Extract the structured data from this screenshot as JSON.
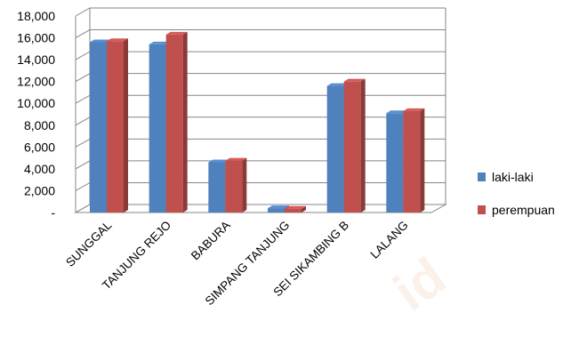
{
  "chart_data": {
    "type": "bar",
    "categories": [
      "SUNGGAL",
      "TANJUNG REJO",
      "BABURA",
      "SIMPANG TANJUNG",
      "SEI SIKAMBING B",
      "LALANG"
    ],
    "series": [
      {
        "name": "laki-laki",
        "values": [
          15600,
          15400,
          4600,
          400,
          11600,
          9100
        ]
      },
      {
        "name": "perempuan",
        "values": [
          15700,
          16300,
          4750,
          350,
          12000,
          9300
        ]
      }
    ],
    "ylim": [
      0,
      18000
    ],
    "yticks": [
      0,
      2000,
      4000,
      6000,
      8000,
      10000,
      12000,
      14000,
      16000,
      18000
    ],
    "ytick_labels": [
      "-",
      "2,000",
      "4,000",
      "6,000",
      "8,000",
      "10,000",
      "12,000",
      "14,000",
      "16,000",
      "18,000"
    ],
    "grid": true,
    "legend_position": "right",
    "style": "3d-clustered-column"
  },
  "colors": {
    "laki-laki": "#4f81bd",
    "perempuan": "#c0504d",
    "grid": "#868686"
  },
  "watermark": "id"
}
